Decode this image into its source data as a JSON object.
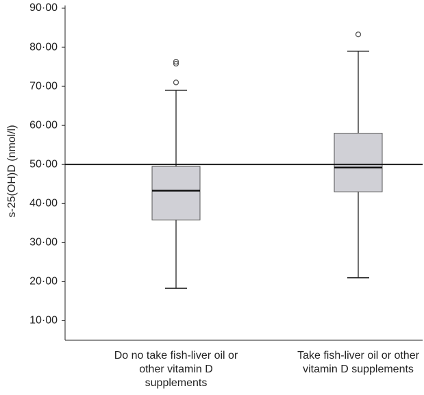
{
  "chart_data": {
    "type": "box",
    "y_label": "s-25(OH)D (nmol/l)",
    "categories": [
      "Do no take fish-liver oil or other vitamin D supplements",
      "Take fish-liver oil or other vitamin D supplements"
    ],
    "boxes": [
      {
        "whisker_low": 18.3,
        "q1": 35.8,
        "median": 43.3,
        "q3": 49.5,
        "whisker_high": 69,
        "outliers": [
          71,
          75.8,
          76.3
        ]
      },
      {
        "whisker_low": 21,
        "q1": 43,
        "median": 49.2,
        "q3": 58,
        "whisker_high": 79,
        "outliers": [
          83.3
        ]
      }
    ],
    "color": "#d0d0d6",
    "reference_line": 50,
    "ylim": [
      5,
      90.7
    ],
    "yticks": [
      {
        "value": 10,
        "label": "10·00"
      },
      {
        "value": 20,
        "label": "20·00"
      },
      {
        "value": 30,
        "label": "30·00"
      },
      {
        "value": 40,
        "label": "40·00"
      },
      {
        "value": 50,
        "label": "50·00"
      },
      {
        "value": 60,
        "label": "60·00"
      },
      {
        "value": 70,
        "label": "70·00"
      },
      {
        "value": 80,
        "label": "80·00"
      },
      {
        "value": 90,
        "label": "90·00"
      }
    ]
  }
}
